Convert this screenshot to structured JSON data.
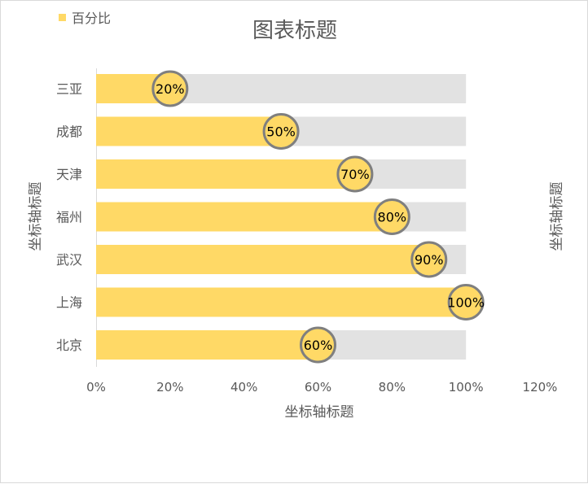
{
  "chart_data": {
    "type": "bar",
    "orientation": "horizontal",
    "title": "图表标题",
    "xlabel": "坐标轴标题",
    "ylabel": "坐标轴标题",
    "secondary_ylabel": "坐标轴标题",
    "categories": [
      "三亚",
      "成都",
      "天津",
      "福州",
      "武汉",
      "上海",
      "北京"
    ],
    "series": [
      {
        "name": "百分比",
        "values": [
          0.2,
          0.5,
          0.7,
          0.8,
          0.9,
          1.0,
          0.6
        ],
        "color": "#FFD966"
      }
    ],
    "data_labels": [
      "20%",
      "50%",
      "70%",
      "80%",
      "90%",
      "100%",
      "60%"
    ],
    "background_bar_value": 1.0,
    "background_bar_color": "#E2E2E2",
    "marker_border_color": "#7F7F7F",
    "xlim": [
      0,
      1.2
    ],
    "x_ticks": [
      0,
      0.2,
      0.4,
      0.6,
      0.8,
      1.0,
      1.2
    ],
    "x_tick_labels": [
      "0%",
      "20%",
      "40%",
      "60%",
      "80%",
      "100%",
      "120%"
    ],
    "legend_position": "top-left",
    "grid": false
  }
}
